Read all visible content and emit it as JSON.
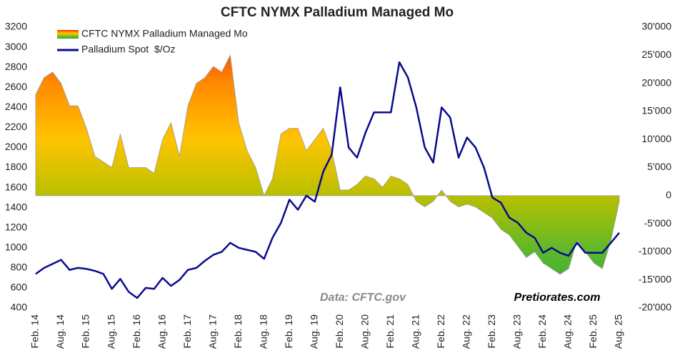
{
  "chart_data": {
    "type": "area-line",
    "title": "CFTC NYMX Palladium Managed Mo",
    "annotations": [
      "Data: CFTC.gov",
      "Pretiorates.com"
    ],
    "legend": "upper left",
    "categories": [
      "Feb. 14",
      null,
      null,
      "Aug. 14",
      null,
      null,
      "Feb. 15",
      null,
      null,
      "Aug. 15",
      null,
      null,
      "Feb. 16",
      null,
      null,
      "Aug. 16",
      null,
      null,
      "Feb. 17",
      null,
      null,
      "Aug. 17",
      null,
      null,
      "Feb. 18",
      null,
      null,
      "Aug. 18",
      null,
      null,
      "Feb. 19",
      null,
      null,
      "Aug. 19",
      null,
      null,
      "Feb. 20",
      null,
      null,
      "Aug. 20",
      null,
      null,
      "Feb. 21",
      null,
      null,
      "Aug. 21",
      null,
      null,
      "Feb. 22",
      null,
      null,
      "Aug. 22",
      null,
      null,
      "Feb. 23",
      null,
      null,
      "Aug. 23",
      null,
      null,
      "Feb. 24",
      null,
      null,
      "Aug. 24",
      null,
      null,
      "Feb. 25",
      null,
      null,
      "Aug. 25"
    ],
    "series": [
      {
        "name": "CFTC NYMX Palladium Managed Mo",
        "axis": "y2",
        "kind": "area",
        "gradient": [
          "#ff2000",
          "#ff8a00",
          "#ffc400",
          "#b8c000",
          "#5cb82a",
          "#2ea838"
        ],
        "values": [
          18000,
          21000,
          22000,
          20000,
          16000,
          16000,
          12000,
          7000,
          6000,
          5000,
          11000,
          5000,
          5000,
          5000,
          4000,
          10000,
          13000,
          7000,
          16000,
          20000,
          21000,
          23000,
          22000,
          25000,
          13000,
          8000,
          5000,
          0,
          3000,
          11000,
          12000,
          12000,
          8000,
          10000,
          12000,
          8000,
          1000,
          1000,
          2000,
          3500,
          3000,
          1500,
          3500,
          3000,
          2000,
          -1000,
          -2000,
          -1000,
          1000,
          -1000,
          -2000,
          -1500,
          -2000,
          -3000,
          -4000,
          -6000,
          -7000,
          -9000,
          -11000,
          -10000,
          -12000,
          -13000,
          -14000,
          -13000,
          -8000,
          -10000,
          -12000,
          -13000,
          -8000,
          -1000
        ]
      },
      {
        "name": "Palladium Spot  $/Oz",
        "kind": "line",
        "color": "#0a0a8c",
        "values": [
          740,
          800,
          840,
          880,
          780,
          800,
          790,
          770,
          740,
          590,
          690,
          560,
          500,
          600,
          590,
          700,
          620,
          680,
          780,
          800,
          870,
          930,
          960,
          1050,
          1000,
          980,
          960,
          890,
          1100,
          1250,
          1480,
          1380,
          1520,
          1460,
          1760,
          1930,
          2600,
          2000,
          1900,
          2150,
          2350,
          2350,
          2350,
          2850,
          2700,
          2400,
          2000,
          1850,
          2400,
          2300,
          1900,
          2100,
          2000,
          1800,
          1500,
          1450,
          1300,
          1250,
          1150,
          1100,
          950,
          1000,
          950,
          920,
          1050,
          950,
          950,
          950,
          1050,
          1150
        ]
      }
    ],
    "ylim": [
      400,
      3200
    ],
    "yticks": [
      400,
      600,
      800,
      1000,
      1200,
      1400,
      1600,
      1800,
      2000,
      2200,
      2400,
      2600,
      2800,
      3000,
      3200
    ],
    "y2lim": [
      -20000,
      30000
    ],
    "y2ticks": [
      {
        "value": -20000,
        "label": "-20'000"
      },
      {
        "value": -15000,
        "label": "-15'000"
      },
      {
        "value": -10000,
        "label": "-10'000"
      },
      {
        "value": -5000,
        "label": "-5'000"
      },
      {
        "value": 0,
        "label": "0"
      },
      {
        "value": 5000,
        "label": "5'000"
      },
      {
        "value": 10000,
        "label": "10'000"
      },
      {
        "value": 15000,
        "label": "15'000"
      },
      {
        "value": 20000,
        "label": "20'000"
      },
      {
        "value": 25000,
        "label": "25'000"
      },
      {
        "value": 30000,
        "label": "30'000"
      }
    ]
  }
}
